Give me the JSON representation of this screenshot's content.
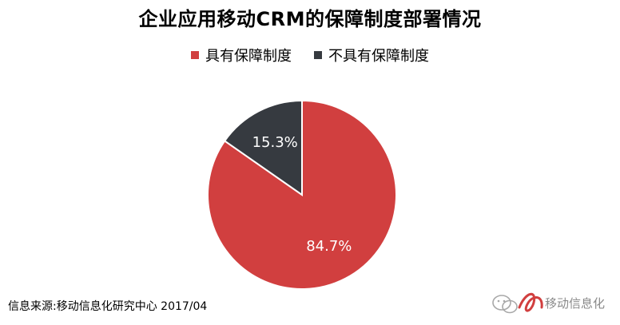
{
  "chart_data": {
    "type": "pie",
    "title": "企业应用移动CRM的保障制度部署情况",
    "categories": [
      "具有保障制度",
      "不具有保障制度"
    ],
    "values": [
      84.7,
      15.3
    ],
    "labels": [
      "84.7%",
      "15.3%"
    ],
    "colors": [
      "#d13f3f",
      "#363a40"
    ],
    "legend_position": "top"
  },
  "source": "信息来源:移动信息化研究中心 2017/04",
  "watermark": {
    "text": "移动信息化",
    "icon": "wechat-logo-icon"
  }
}
